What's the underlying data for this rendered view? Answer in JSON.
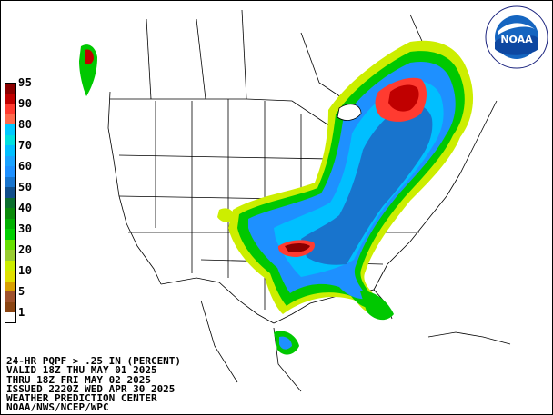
{
  "product": {
    "title": "24-HR PQPF > .25 IN (PERCENT)",
    "valid": "VALID 18Z THU MAY 01 2025",
    "thru": "THRU 18Z FRI MAY 02 2025",
    "issued": "ISSUED 2220Z WED APR 30 2025",
    "center": "WEATHER PREDICTION CENTER",
    "agency": "NOAA/NWS/NCEP/WPC"
  },
  "logo": {
    "text": "NOAA",
    "ring_text": "NATIONAL OCEANIC AND ATMOSPHERIC ADMINISTRATION · U.S. DEPARTMENT OF COMMERCE"
  },
  "legend": [
    {
      "label": "95",
      "color": "#8b0000"
    },
    {
      "label": "",
      "color": "#c00000"
    },
    {
      "label": "90",
      "color": "#ff3b30"
    },
    {
      "label": "",
      "color": "#ff6a4d"
    },
    {
      "label": "80",
      "color": "#00c8ff"
    },
    {
      "label": "",
      "color": "#00e0e0"
    },
    {
      "label": "70",
      "color": "#00bfff"
    },
    {
      "label": "",
      "color": "#1aa3ff"
    },
    {
      "label": "60",
      "color": "#1e90ff"
    },
    {
      "label": "",
      "color": "#1874cd"
    },
    {
      "label": "50",
      "color": "#104e8b"
    },
    {
      "label": "",
      "color": "#0b6e2e"
    },
    {
      "label": "40",
      "color": "#0a8a0a"
    },
    {
      "label": "",
      "color": "#00b000"
    },
    {
      "label": "30",
      "color": "#00d000"
    },
    {
      "label": "",
      "color": "#66e000"
    },
    {
      "label": "20",
      "color": "#9acd32"
    },
    {
      "label": "",
      "color": "#ccee00"
    },
    {
      "label": "10",
      "color": "#e0e000"
    },
    {
      "label": "",
      "color": "#d9a000"
    },
    {
      "label": "5",
      "color": "#a0522d"
    },
    {
      "label": "",
      "color": "#8b4513"
    },
    {
      "label": "1",
      "color": "#ffffff"
    }
  ]
}
